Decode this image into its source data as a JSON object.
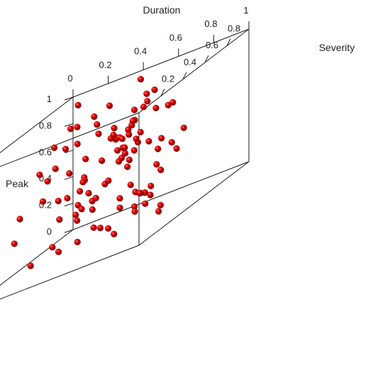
{
  "chart_data": {
    "type": "scatter",
    "dimensions": 3,
    "title": "",
    "axes": {
      "x": {
        "label": "Duration",
        "ticks": [
          "0",
          "0.2",
          "0.4",
          "0.6",
          "0.8",
          "1"
        ],
        "range": [
          0,
          1
        ]
      },
      "y": {
        "label": "Severity",
        "ticks": [
          "0.2",
          "0.4",
          "0.6",
          "0.8"
        ],
        "range": [
          0,
          1
        ]
      },
      "z": {
        "label": "Peak",
        "ticks": [
          "0",
          "0.2",
          "0.4",
          "0.6",
          "0.8",
          "1"
        ],
        "range": [
          0,
          1
        ]
      }
    },
    "grid": false,
    "legend": "none",
    "point_color": "#cc0000",
    "points": [
      [
        0.78,
        0.65,
        0.48
      ],
      [
        0.77,
        0.71,
        0.4
      ],
      [
        0.8,
        0.48,
        0.41
      ],
      [
        0.76,
        0.39,
        0.27
      ],
      [
        0.64,
        0.47,
        0.48
      ],
      [
        0.72,
        0.29,
        0.62
      ],
      [
        0.73,
        0.34,
        0.76
      ],
      [
        0.84,
        0.23,
        0.74
      ],
      [
        0.77,
        0.27,
        0.82
      ],
      [
        0.48,
        0.79,
        0.79
      ],
      [
        0.84,
        0.06,
        0.76
      ],
      [
        0.88,
        0.04,
        0.84
      ],
      [
        0.58,
        0.44,
        0.77
      ],
      [
        0.54,
        0.25,
        0.73
      ],
      [
        0.86,
        0.04,
        0.68
      ],
      [
        0.27,
        0.71,
        0.32
      ],
      [
        0.29,
        0.71,
        0.25
      ],
      [
        0.3,
        0.81,
        0.31
      ],
      [
        0.79,
        0.26,
        0.4
      ],
      [
        0.5,
        0.24,
        0.87
      ],
      [
        0.33,
        0.69,
        0.82
      ],
      [
        0.5,
        0.24,
        0.13
      ],
      [
        0.89,
        0.19,
        0.79
      ],
      [
        0.81,
        0.26,
        0.65
      ],
      [
        0.85,
        0.23,
        0.71
      ],
      [
        0.41,
        0.45,
        0.51
      ],
      [
        0.88,
        0.3,
        0.32
      ],
      [
        0.43,
        0.39,
        0.32
      ],
      [
        0.66,
        0.6,
        0.11
      ],
      [
        0.86,
        0.49,
        0.82
      ],
      [
        0.41,
        0.77,
        0.1
      ],
      [
        0.43,
        0.88,
        0.14
      ],
      [
        0.48,
        0.63,
        0.68
      ],
      [
        0.86,
        0.42,
        0.11
      ],
      [
        0.69,
        0.6,
        0.16
      ],
      [
        0.16,
        0.92,
        0.12
      ],
      [
        0.75,
        0.12,
        0.18
      ],
      [
        0.78,
        0.76,
        0.52
      ],
      [
        0.82,
        0.25,
        0.19
      ],
      [
        0.6,
        0.13,
        0.6
      ],
      [
        0.28,
        0.5,
        0.41
      ],
      [
        0.13,
        0.77,
        0.84
      ],
      [
        0.69,
        0.44,
        0.82
      ],
      [
        0.73,
        0.63,
        0.31
      ],
      [
        0.11,
        0.34,
        0.44
      ],
      [
        0.53,
        0.36,
        0.37
      ],
      [
        0.21,
        0.36,
        0.71
      ],
      [
        0.53,
        0.34,
        0.16
      ],
      [
        0.67,
        0.67,
        0.92
      ],
      [
        0.08,
        0.91,
        0.79
      ],
      [
        0.22,
        0.58,
        0.76
      ],
      [
        0.37,
        0.22,
        0.17
      ],
      [
        0.92,
        0.04,
        0.66
      ],
      [
        0.72,
        0.62,
        0.48
      ],
      [
        0.06,
        0.95,
        0.94
      ],
      [
        0.24,
        0.23,
        0.09
      ],
      [
        0.15,
        0.59,
        0.8
      ],
      [
        0.81,
        0.13,
        0.37
      ],
      [
        0.28,
        0.32,
        0.65
      ],
      [
        0.34,
        0.8,
        0.64
      ],
      [
        0.59,
        0.53,
        0.57
      ],
      [
        0.83,
        0.45,
        0.06
      ],
      [
        0.26,
        0.45,
        0.43
      ],
      [
        0.01,
        0.71,
        0.39
      ],
      [
        0.41,
        0.38,
        0.25
      ],
      [
        0.11,
        0.7,
        0.21
      ],
      [
        0.62,
        0.57,
        0.78
      ],
      [
        0.33,
        0.34,
        0.08
      ],
      [
        0.53,
        0.4,
        0.12
      ],
      [
        0.49,
        0.24,
        0.34
      ],
      [
        0.27,
        0.9,
        0.86
      ],
      [
        0.11,
        0.79,
        0.5
      ],
      [
        0.12,
        0.91,
        0.39
      ],
      [
        0.6,
        0.73,
        0.53
      ],
      [
        0.42,
        0.97,
        0.73
      ],
      [
        0.44,
        0.83,
        0.67
      ],
      [
        0.57,
        0.41,
        0.45
      ],
      [
        0.72,
        0.22,
        0.09
      ],
      [
        0.26,
        0.05,
        0.36
      ],
      [
        0.42,
        0.52,
        0.94
      ],
      [
        0.6,
        0.71,
        0.9
      ],
      [
        0.8,
        0.19,
        0.72
      ],
      [
        0.69,
        0.55,
        0.21
      ],
      [
        0.63,
        0.9,
        0.7
      ],
      [
        0.78,
        0.31,
        0.21
      ],
      [
        0.54,
        0.89,
        0.71
      ],
      [
        0.33,
        0.86,
        0.6
      ],
      [
        0.47,
        0.48,
        0.81
      ],
      [
        0.17,
        0.99,
        0.44
      ],
      [
        0.12,
        0.87,
        0.31
      ],
      [
        0.72,
        0.3,
        0.69
      ],
      [
        0.11,
        0.87,
        0.21
      ],
      [
        0.41,
        0.96,
        0.95
      ],
      [
        0.74,
        0.62,
        0.55
      ],
      [
        0.24,
        0.99,
        0.65
      ],
      [
        0.79,
        0.16,
        0.82
      ],
      [
        0.66,
        0.62,
        0.87
      ],
      [
        0.2,
        0.52,
        0.66
      ],
      [
        0.71,
        0.48,
        0.24
      ]
    ]
  }
}
